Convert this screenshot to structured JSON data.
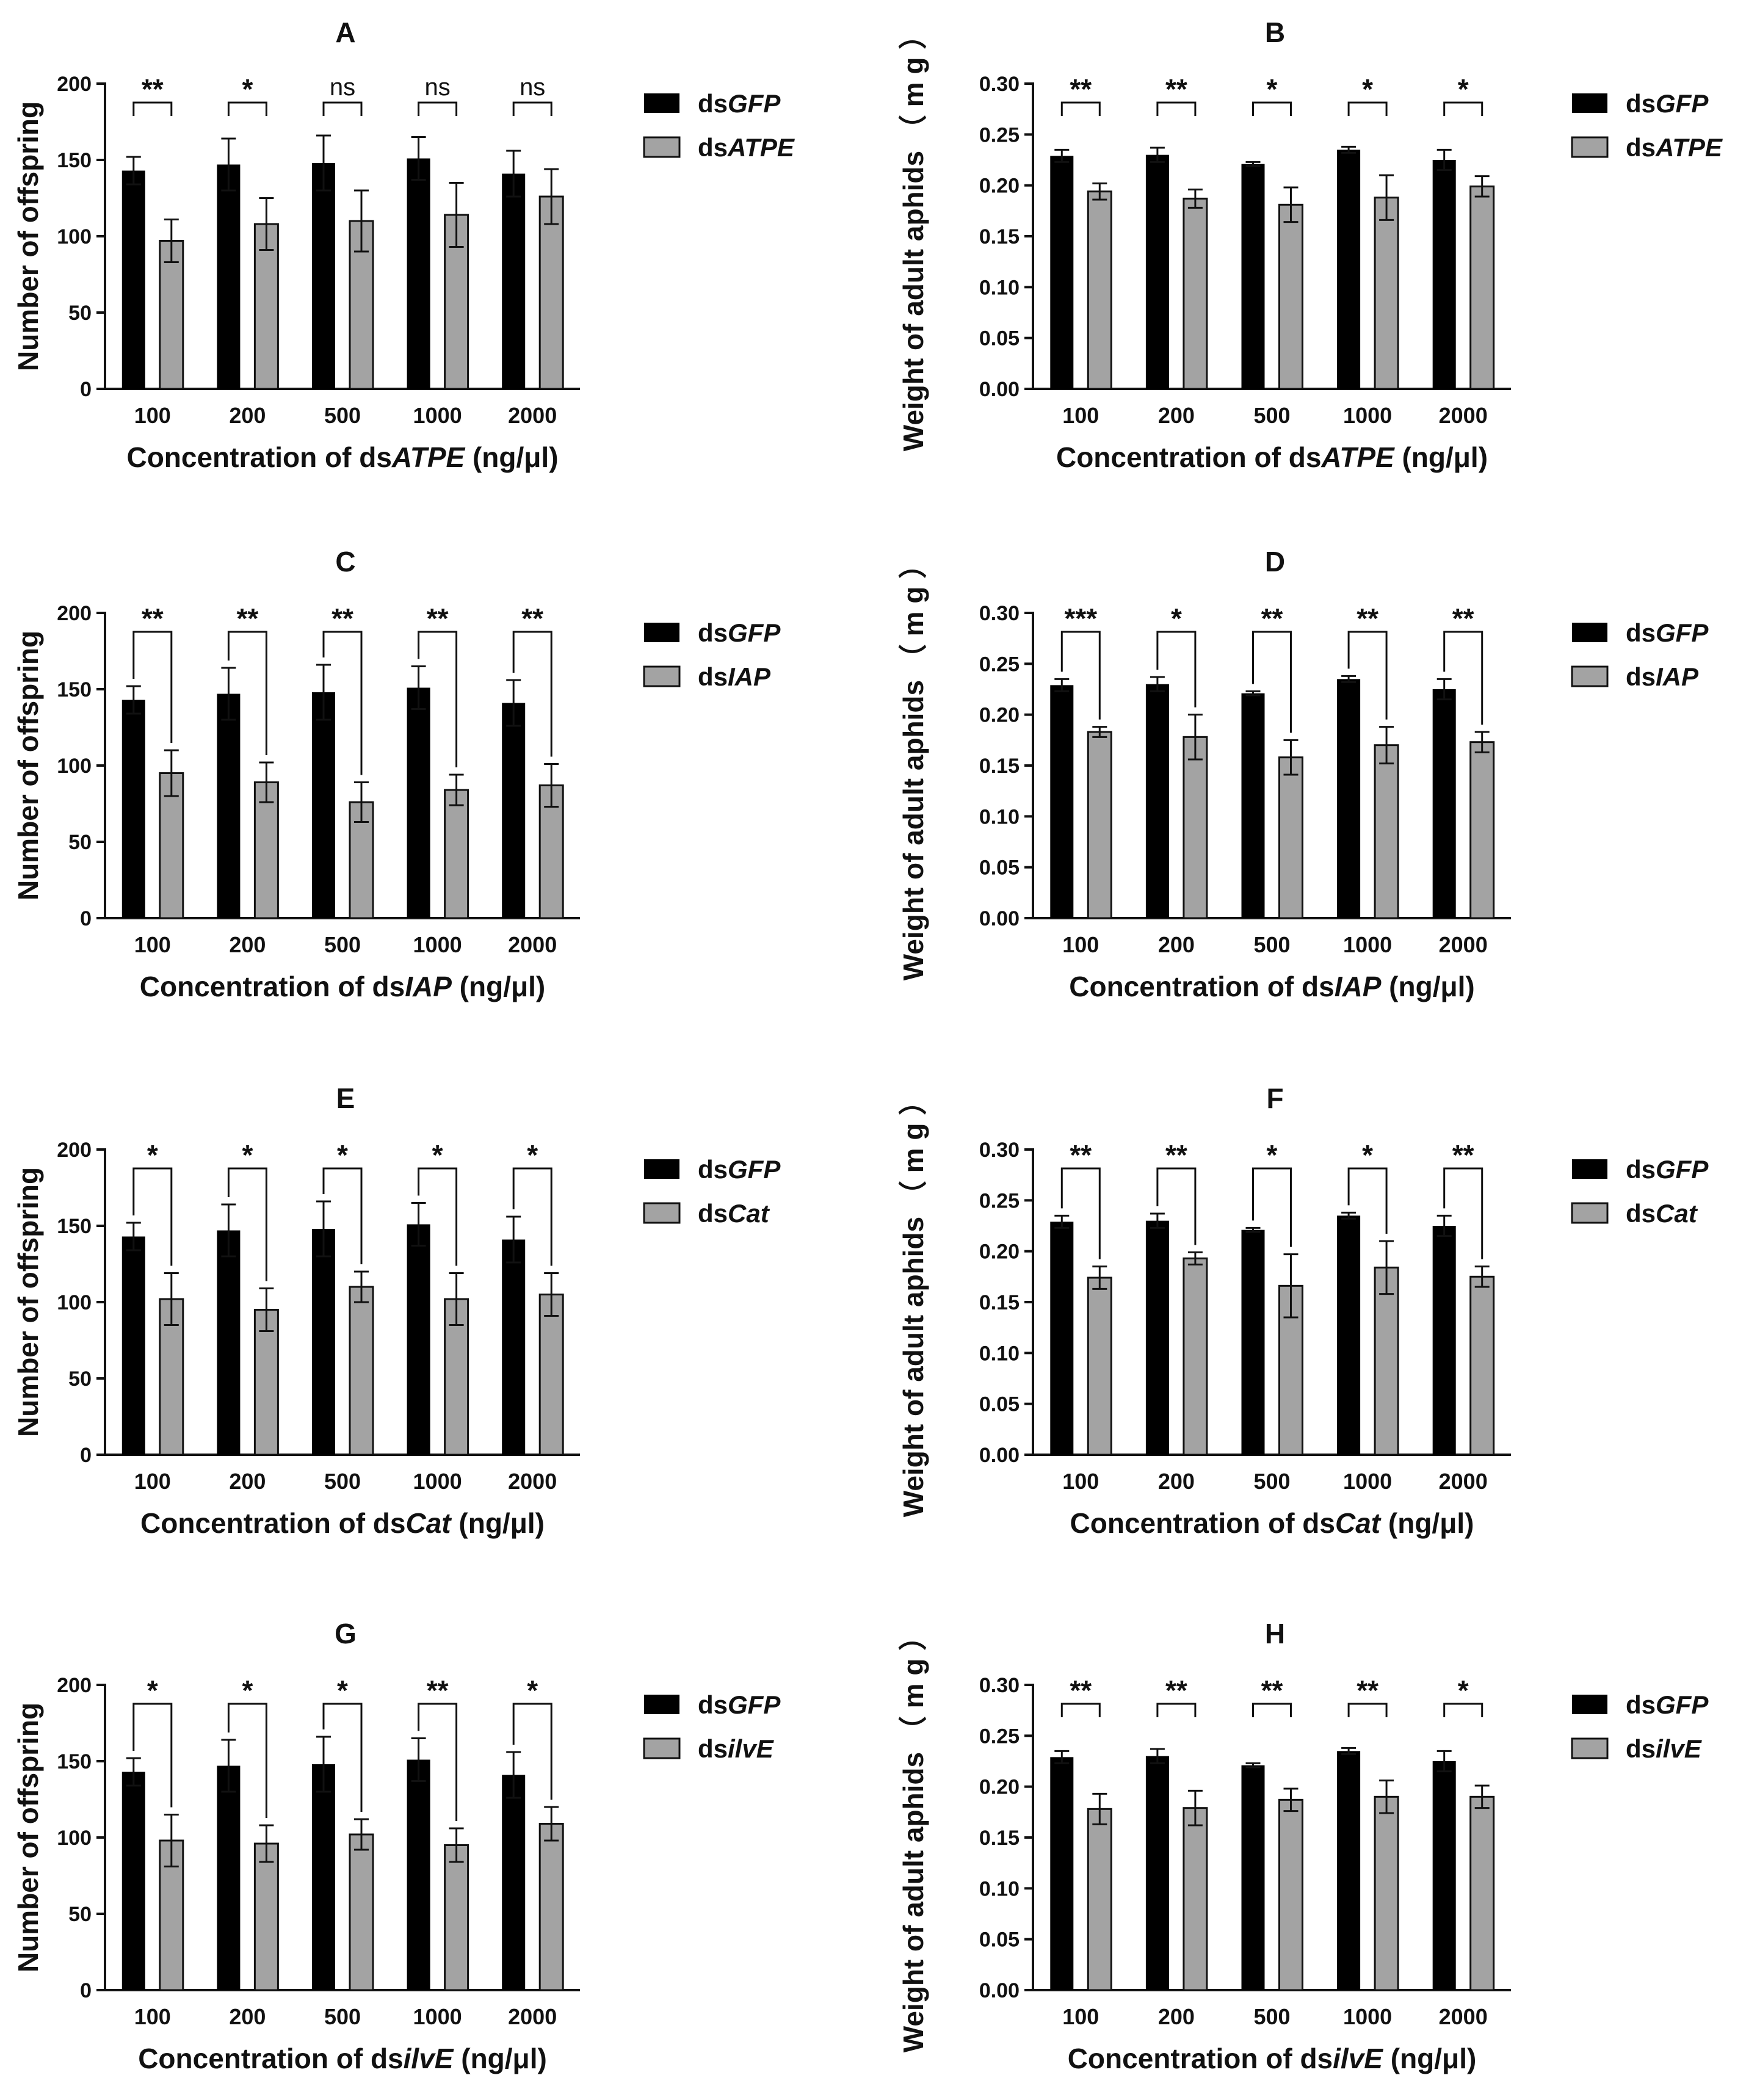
{
  "colors": {
    "control": "#000000",
    "treatment": "#a3a3a3",
    "axis": "#111111"
  },
  "chart_data": [
    {
      "panel": "A",
      "type": "bar",
      "categories": [
        "100",
        "200",
        "500",
        "1000",
        "2000"
      ],
      "ylabel": "Number of offspring",
      "xlabel": {
        "prefix": "Concentration of ds",
        "gene": "ATPE",
        "suffix": " (ng/μl)"
      },
      "yticks": [
        "0",
        "50",
        "100",
        "150",
        "200"
      ],
      "ylim": [
        0,
        200
      ],
      "series": [
        {
          "name": "dsGFP",
          "prefix": "ds",
          "gene": "GFP",
          "values": [
            143,
            147,
            148,
            151,
            141
          ],
          "errors": [
            9,
            17,
            18,
            14,
            15
          ]
        },
        {
          "name": "dsATPE",
          "prefix": "ds",
          "gene": "ATPE",
          "values": [
            97,
            108,
            110,
            114,
            126
          ],
          "errors": [
            14,
            17,
            20,
            21,
            18
          ]
        }
      ],
      "significance": [
        "**",
        "*",
        "ns",
        "ns",
        "ns"
      ],
      "bracket": "short"
    },
    {
      "panel": "B",
      "type": "bar",
      "categories": [
        "100",
        "200",
        "500",
        "1000",
        "2000"
      ],
      "ylabel": "Weight of adult aphids （ m g ）",
      "xlabel": {
        "prefix": "Concentration of ds",
        "gene": "ATPE",
        "suffix": " (ng/μl)"
      },
      "yticks": [
        "0.00",
        "0.05",
        "0.10",
        "0.15",
        "0.20",
        "0.25",
        "0.30"
      ],
      "ylim": [
        0,
        0.3
      ],
      "series": [
        {
          "name": "dsGFP",
          "prefix": "ds",
          "gene": "GFP",
          "values": [
            0.229,
            0.23,
            0.221,
            0.235,
            0.225
          ],
          "errors": [
            0.006,
            0.007,
            0.002,
            0.003,
            0.01
          ]
        },
        {
          "name": "dsATPE",
          "prefix": "ds",
          "gene": "ATPE",
          "values": [
            0.194,
            0.187,
            0.181,
            0.188,
            0.199
          ],
          "errors": [
            0.008,
            0.009,
            0.017,
            0.022,
            0.01
          ]
        }
      ],
      "significance": [
        "**",
        "**",
        "*",
        "*",
        "*"
      ],
      "bracket": "short"
    },
    {
      "panel": "C",
      "type": "bar",
      "categories": [
        "100",
        "200",
        "500",
        "1000",
        "2000"
      ],
      "ylabel": "Number of offspring",
      "xlabel": {
        "prefix": "Concentration of ds",
        "gene": "IAP",
        "suffix": " (ng/μl)"
      },
      "yticks": [
        "0",
        "50",
        "100",
        "150",
        "200"
      ],
      "ylim": [
        0,
        200
      ],
      "series": [
        {
          "name": "dsGFP",
          "prefix": "ds",
          "gene": "GFP",
          "values": [
            143,
            147,
            148,
            151,
            141
          ],
          "errors": [
            9,
            17,
            18,
            14,
            15
          ]
        },
        {
          "name": "dsIAP",
          "prefix": "ds",
          "gene": "IAP",
          "values": [
            95,
            89,
            76,
            84,
            87
          ],
          "errors": [
            15,
            13,
            13,
            10,
            14
          ]
        }
      ],
      "significance": [
        "**",
        "**",
        "**",
        "**",
        "**"
      ],
      "bracket": "long"
    },
    {
      "panel": "D",
      "type": "bar",
      "categories": [
        "100",
        "200",
        "500",
        "1000",
        "2000"
      ],
      "ylabel": "Weight of adult aphids （ m g ）",
      "xlabel": {
        "prefix": "Concentration of ds",
        "gene": "IAP",
        "suffix": " (ng/μl)"
      },
      "yticks": [
        "0.00",
        "0.05",
        "0.10",
        "0.15",
        "0.20",
        "0.25",
        "0.30"
      ],
      "ylim": [
        0,
        0.3
      ],
      "series": [
        {
          "name": "dsGFP",
          "prefix": "ds",
          "gene": "GFP",
          "values": [
            0.229,
            0.23,
            0.221,
            0.235,
            0.225
          ],
          "errors": [
            0.006,
            0.007,
            0.002,
            0.003,
            0.01
          ]
        },
        {
          "name": "dsIAP",
          "prefix": "ds",
          "gene": "IAP",
          "values": [
            0.183,
            0.178,
            0.158,
            0.17,
            0.173
          ],
          "errors": [
            0.005,
            0.022,
            0.017,
            0.018,
            0.01
          ]
        }
      ],
      "significance": [
        "***",
        "*",
        "**",
        "**",
        "**"
      ],
      "bracket": "long"
    },
    {
      "panel": "E",
      "type": "bar",
      "categories": [
        "100",
        "200",
        "500",
        "1000",
        "2000"
      ],
      "ylabel": "Number of offspring",
      "xlabel": {
        "prefix": "Concentration of ds",
        "gene": "Cat",
        "suffix": " (ng/μl)"
      },
      "yticks": [
        "0",
        "50",
        "100",
        "150",
        "200"
      ],
      "ylim": [
        0,
        200
      ],
      "series": [
        {
          "name": "dsGFP",
          "prefix": "ds",
          "gene": "GFP",
          "values": [
            143,
            147,
            148,
            151,
            141
          ],
          "errors": [
            9,
            17,
            18,
            14,
            15
          ]
        },
        {
          "name": "dsCat",
          "prefix": "ds",
          "gene": "Cat",
          "values": [
            102,
            95,
            110,
            102,
            105
          ],
          "errors": [
            17,
            14,
            10,
            17,
            14
          ]
        }
      ],
      "significance": [
        "*",
        "*",
        "*",
        "*",
        "*"
      ],
      "bracket": "long"
    },
    {
      "panel": "F",
      "type": "bar",
      "categories": [
        "100",
        "200",
        "500",
        "1000",
        "2000"
      ],
      "ylabel": "Weight of adult aphids （ m g ）",
      "xlabel": {
        "prefix": "Concentration of ds",
        "gene": "Cat",
        "suffix": " (ng/μl)"
      },
      "yticks": [
        "0.00",
        "0.05",
        "0.10",
        "0.15",
        "0.20",
        "0.25",
        "0.30"
      ],
      "ylim": [
        0,
        0.3
      ],
      "series": [
        {
          "name": "dsGFP",
          "prefix": "ds",
          "gene": "GFP",
          "values": [
            0.229,
            0.23,
            0.221,
            0.235,
            0.225
          ],
          "errors": [
            0.006,
            0.007,
            0.002,
            0.003,
            0.01
          ]
        },
        {
          "name": "dsCat",
          "prefix": "ds",
          "gene": "Cat",
          "values": [
            0.174,
            0.193,
            0.166,
            0.184,
            0.175
          ],
          "errors": [
            0.011,
            0.006,
            0.031,
            0.026,
            0.01
          ]
        }
      ],
      "significance": [
        "**",
        "**",
        "*",
        "*",
        "**"
      ],
      "bracket": "long"
    },
    {
      "panel": "G",
      "type": "bar",
      "categories": [
        "100",
        "200",
        "500",
        "1000",
        "2000"
      ],
      "ylabel": "Number of offspring",
      "xlabel": {
        "prefix": "Concentration of ds",
        "gene": "ilvE",
        "suffix": " (ng/μl)"
      },
      "yticks": [
        "0",
        "50",
        "100",
        "150",
        "200"
      ],
      "ylim": [
        0,
        200
      ],
      "series": [
        {
          "name": "dsGFP",
          "prefix": "ds",
          "gene": "GFP",
          "values": [
            143,
            147,
            148,
            151,
            141
          ],
          "errors": [
            9,
            17,
            18,
            14,
            15
          ]
        },
        {
          "name": "dsilvE",
          "prefix": "ds",
          "gene": "ilvE",
          "values": [
            98,
            96,
            102,
            95,
            109
          ],
          "errors": [
            17,
            12,
            10,
            11,
            11
          ]
        }
      ],
      "significance": [
        "*",
        "*",
        "*",
        "**",
        "*"
      ],
      "bracket": "long"
    },
    {
      "panel": "H",
      "type": "bar",
      "categories": [
        "100",
        "200",
        "500",
        "1000",
        "2000"
      ],
      "ylabel": "Weight of adult aphids （ m g ）",
      "xlabel": {
        "prefix": "Concentration of ds",
        "gene": "ilvE",
        "suffix": " (ng/μl)"
      },
      "yticks": [
        "0.00",
        "0.05",
        "0.10",
        "0.15",
        "0.20",
        "0.25",
        "0.30"
      ],
      "ylim": [
        0,
        0.3
      ],
      "series": [
        {
          "name": "dsGFP",
          "prefix": "ds",
          "gene": "GFP",
          "values": [
            0.229,
            0.23,
            0.221,
            0.235,
            0.225
          ],
          "errors": [
            0.006,
            0.007,
            0.002,
            0.003,
            0.01
          ]
        },
        {
          "name": "dsilvE",
          "prefix": "ds",
          "gene": "ilvE",
          "values": [
            0.178,
            0.179,
            0.187,
            0.19,
            0.19
          ],
          "errors": [
            0.015,
            0.017,
            0.011,
            0.016,
            0.011
          ]
        }
      ],
      "significance": [
        "**",
        "**",
        "**",
        "**",
        "*"
      ],
      "bracket": "short"
    }
  ]
}
